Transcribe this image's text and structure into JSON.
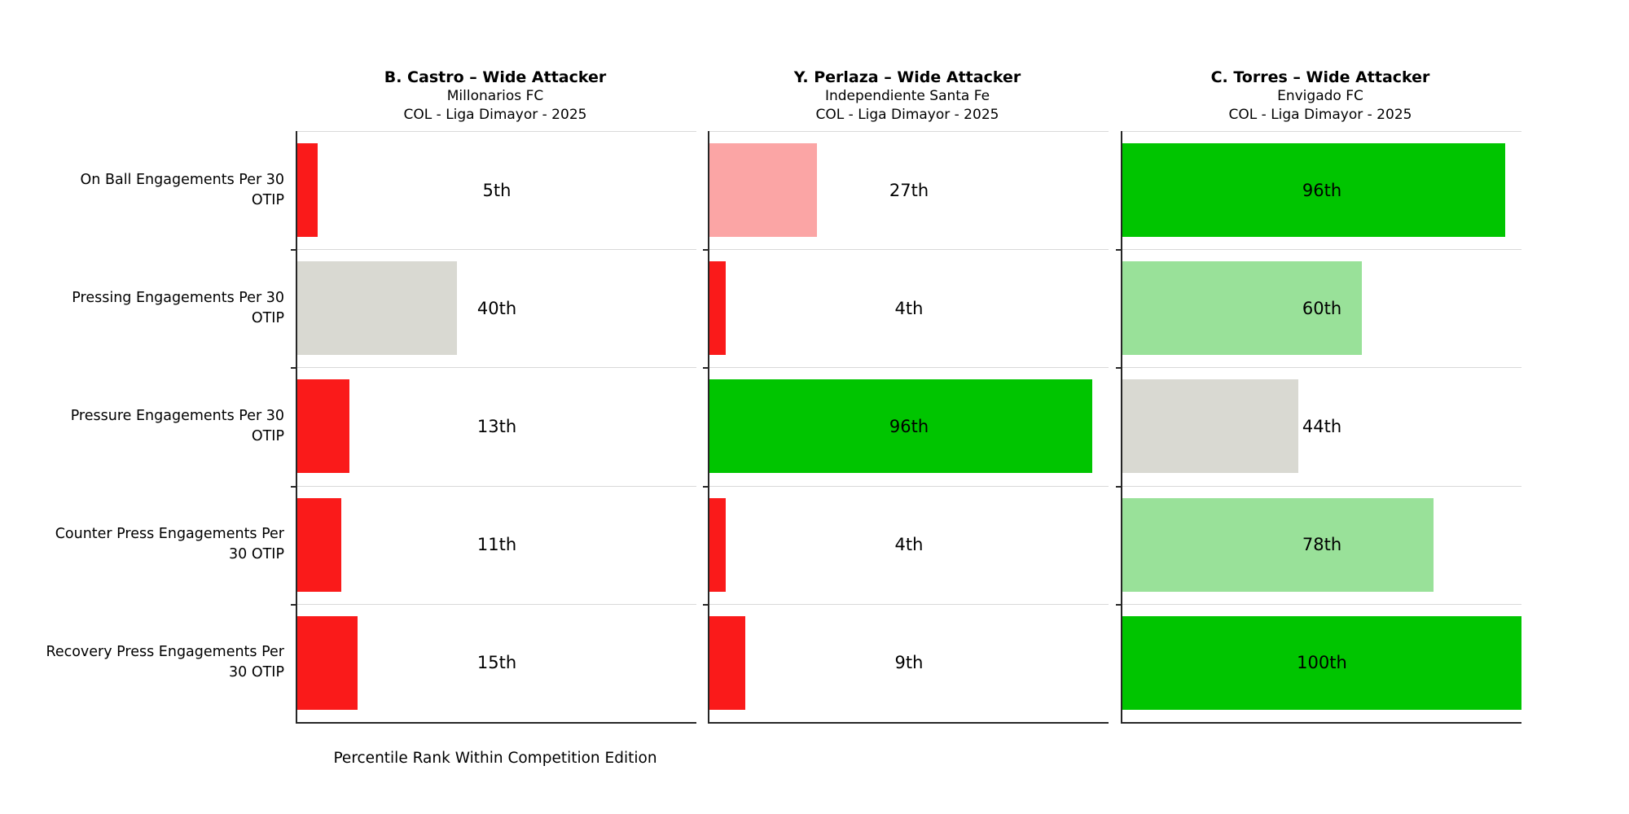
{
  "chart_data": {
    "type": "bar",
    "orientation": "horizontal",
    "title": "",
    "xlabel": "Percentile Rank Within Competition Edition",
    "xlim": [
      0,
      100
    ],
    "unit": "percentile_rank",
    "legend": "none",
    "grid": "row-separators",
    "categories": [
      "On Ball Engagements Per 30 OTIP",
      "Pressing Engagements Per 30 OTIP",
      "Pressure Engagements Per 30 OTIP",
      "Counter Press Engagements Per 30 OTIP",
      "Recovery Press Engagements Per 30 OTIP"
    ],
    "categories_wrapped": [
      [
        "On Ball Engagements Per 30",
        "OTIP"
      ],
      [
        "Pressing Engagements Per 30",
        "OTIP"
      ],
      [
        "Pressure Engagements Per 30",
        "OTIP"
      ],
      [
        "Counter Press Engagements Per",
        "30 OTIP"
      ],
      [
        "Recovery Press Engagements Per",
        "30 OTIP"
      ]
    ],
    "series": [
      {
        "name": "B. Castro – Wide Attacker",
        "team": "Millonarios FC",
        "competition": "COL - Liga Dimayor - 2025",
        "values": [
          5,
          40,
          13,
          11,
          15
        ],
        "value_labels": [
          "5th",
          "40th",
          "13th",
          "11th",
          "15th"
        ],
        "bar_colors": [
          "#fa1a1a",
          "#d9d9d2",
          "#fa1a1a",
          "#fa1a1a",
          "#fa1a1a"
        ]
      },
      {
        "name": "Y. Perlaza – Wide Attacker",
        "team": "Independiente Santa Fe",
        "competition": "COL - Liga Dimayor - 2025",
        "values": [
          27,
          4,
          96,
          4,
          9
        ],
        "value_labels": [
          "27th",
          "4th",
          "96th",
          "4th",
          "9th"
        ],
        "bar_colors": [
          "#fba5a5",
          "#fa1a1a",
          "#00c500",
          "#fa1a1a",
          "#fa1a1a"
        ]
      },
      {
        "name": "C. Torres – Wide Attacker",
        "team": "Envigado FC",
        "competition": "COL - Liga Dimayor - 2025",
        "values": [
          96,
          60,
          44,
          78,
          100
        ],
        "value_labels": [
          "96th",
          "60th",
          "44th",
          "78th",
          "100th"
        ],
        "bar_colors": [
          "#00c500",
          "#99e199",
          "#d9d9d2",
          "#99e199",
          "#00c500"
        ]
      }
    ],
    "palette": {
      "very_low": "#fa1a1a",
      "low": "#fba5a5",
      "mid": "#d9d9d2",
      "high": "#99e199",
      "very_high": "#00c500"
    }
  }
}
